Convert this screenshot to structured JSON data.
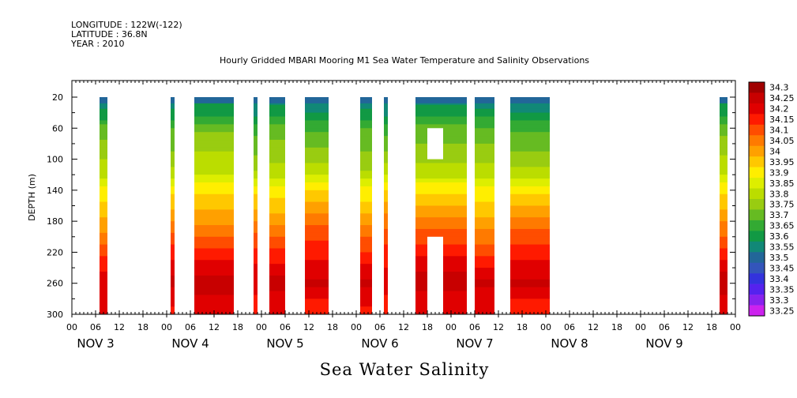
{
  "header": {
    "longitude": "LONGITUDE : 122W(-122)",
    "latitude": "LATITUDE : 36.8N",
    "year": "YEAR : 2010",
    "title": "Hourly Gridded MBARI Mooring M1 Sea Water Temperature and Salinity Observations"
  },
  "bottom_title": "Sea Water Salinity",
  "chart_data": {
    "type": "heatmap",
    "title": "Hourly Gridded MBARI Mooring M1 Sea Water Temperature and Salinity Observations",
    "xlabel": "Sea Water Salinity",
    "ylabel": "DEPTH (m)",
    "x_unit": "hours since 00 Nov 3, 2010",
    "xlim": [
      0,
      168
    ],
    "ylim": [
      300,
      0
    ],
    "y_ticks": [
      20,
      60,
      100,
      140,
      180,
      220,
      260,
      300
    ],
    "x_tick_labels": [
      "00",
      "06",
      "12",
      "18",
      "00",
      "06",
      "12",
      "18",
      "00",
      "06",
      "12",
      "18",
      "00",
      "06",
      "12",
      "18",
      "00",
      "06",
      "12",
      "18",
      "00",
      "06",
      "12",
      "18",
      "00",
      "06",
      "12",
      "18",
      "00"
    ],
    "day_labels": [
      "NOV 3",
      "NOV 4",
      "NOV 5",
      "NOV 6",
      "NOV 7",
      "NOV 8",
      "NOV 9"
    ],
    "colorbar": {
      "levels": [
        "34.3",
        "34.25",
        "34.2",
        "34.15",
        "34.1",
        "34.05",
        "34",
        "33.95",
        "33.9",
        "33.85",
        "33.8",
        "33.75",
        "33.7",
        "33.65",
        "33.6",
        "33.55",
        "33.5",
        "33.45",
        "33.4",
        "33.35",
        "33.3",
        "33.25"
      ],
      "colors": [
        "#a00000",
        "#c80000",
        "#e00000",
        "#ff1a00",
        "#ff4d00",
        "#ff7a00",
        "#ffa000",
        "#ffc800",
        "#ffee00",
        "#ddee00",
        "#bbdd00",
        "#99cc11",
        "#66bb22",
        "#33aa33",
        "#119944",
        "#118877",
        "#226699",
        "#3355bb",
        "#3333dd",
        "#5522ee",
        "#8822ee",
        "#cc22ee"
      ]
    },
    "data_segments_hours": [
      [
        7,
        9
      ],
      [
        25,
        26
      ],
      [
        31,
        41
      ],
      [
        46,
        47
      ],
      [
        50,
        54
      ],
      [
        59,
        65
      ],
      [
        73,
        76
      ],
      [
        79,
        80
      ],
      [
        87,
        100
      ],
      [
        102,
        107
      ],
      [
        111,
        121
      ],
      [
        164,
        166
      ]
    ],
    "missing_blocks": [
      {
        "hour_start": 90,
        "hour_end": 94,
        "depth_top": 60,
        "depth_bottom": 100
      },
      {
        "hour_start": 90,
        "hour_end": 94,
        "depth_top": 200,
        "depth_bottom": 300
      }
    ],
    "salinity_profile": [
      {
        "depth": 20,
        "salinity": 33.55
      },
      {
        "depth": 40,
        "salinity": 33.6
      },
      {
        "depth": 60,
        "salinity": 33.7
      },
      {
        "depth": 80,
        "salinity": 33.75
      },
      {
        "depth": 100,
        "salinity": 33.8
      },
      {
        "depth": 120,
        "salinity": 33.85
      },
      {
        "depth": 140,
        "salinity": 33.95
      },
      {
        "depth": 160,
        "salinity": 34.0
      },
      {
        "depth": 180,
        "salinity": 34.05
      },
      {
        "depth": 200,
        "salinity": 34.1
      },
      {
        "depth": 220,
        "salinity": 34.15
      },
      {
        "depth": 240,
        "salinity": 34.2
      },
      {
        "depth": 260,
        "salinity": 34.25
      },
      {
        "depth": 280,
        "salinity": 34.2
      },
      {
        "depth": 300,
        "salinity": 34.2
      }
    ],
    "grid": false,
    "legend": "right colorbar"
  }
}
